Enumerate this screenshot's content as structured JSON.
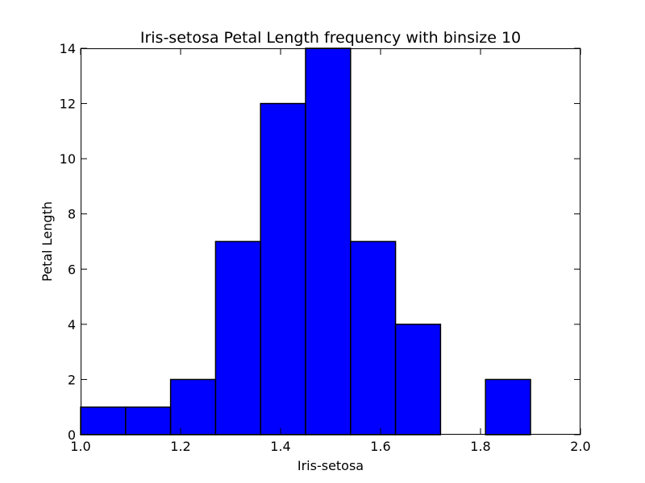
{
  "chart_data": {
    "type": "bar",
    "title": "Iris-setosa Petal Length frequency with binsize 10",
    "xlabel": "Iris-setosa",
    "ylabel": "Petal Length",
    "xlim": [
      1.0,
      2.0
    ],
    "ylim": [
      0,
      14
    ],
    "xticks": [
      "1.0",
      "1.2",
      "1.4",
      "1.6",
      "1.8",
      "2.0"
    ],
    "yticks": [
      "0",
      "2",
      "4",
      "6",
      "8",
      "10",
      "12",
      "14"
    ],
    "bins": [
      {
        "x0": 1.0,
        "x1": 1.09,
        "count": 1
      },
      {
        "x0": 1.09,
        "x1": 1.18,
        "count": 1
      },
      {
        "x0": 1.18,
        "x1": 1.27,
        "count": 2
      },
      {
        "x0": 1.27,
        "x1": 1.36,
        "count": 7
      },
      {
        "x0": 1.36,
        "x1": 1.45,
        "count": 12
      },
      {
        "x0": 1.45,
        "x1": 1.54,
        "count": 14
      },
      {
        "x0": 1.54,
        "x1": 1.63,
        "count": 7
      },
      {
        "x0": 1.63,
        "x1": 1.72,
        "count": 4
      },
      {
        "x0": 1.72,
        "x1": 1.81,
        "count": 0
      },
      {
        "x0": 1.81,
        "x1": 1.9,
        "count": 2
      }
    ],
    "bar_color": "#0000ff",
    "edge_color": "#000000",
    "grid": false,
    "legend": false
  }
}
